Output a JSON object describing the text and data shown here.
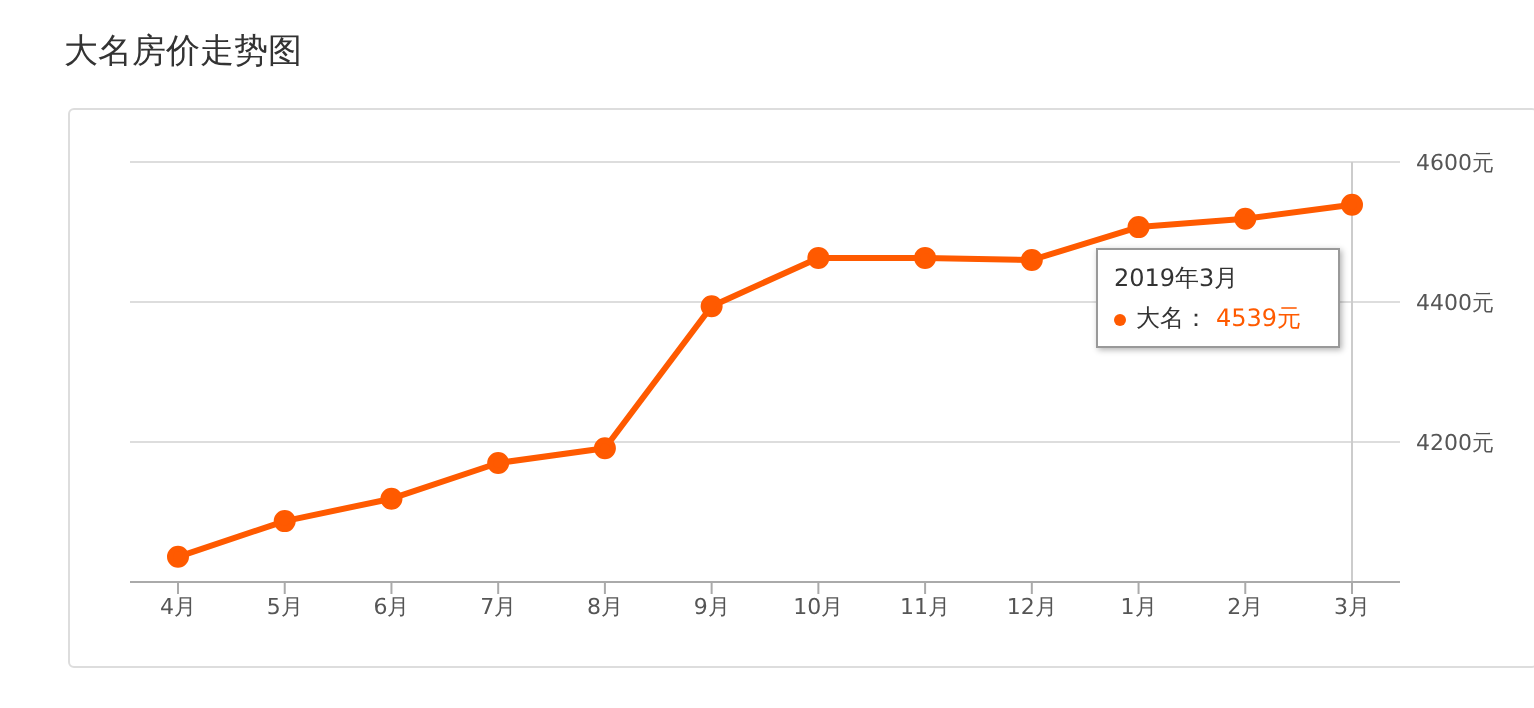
{
  "chart_data": {
    "type": "line",
    "title": "大名房价走势图",
    "categories": [
      "4月",
      "5月",
      "6月",
      "7月",
      "8月",
      "9月",
      "10月",
      "11月",
      "12月",
      "1月",
      "2月",
      "3月"
    ],
    "series": [
      {
        "name": "大名：",
        "color": "#ff5a00",
        "values": [
          4036,
          4087,
          4119,
          4170,
          4191,
          4394,
          4463,
          4463,
          4460,
          4507,
          4519,
          4539
        ]
      }
    ],
    "ylim": [
      4000,
      4600
    ],
    "yticks": [
      {
        "value": 4000,
        "label": null
      },
      {
        "value": 4200,
        "label": "4200元"
      },
      {
        "value": 4400,
        "label": "4400元"
      },
      {
        "value": 4600,
        "label": "4600元"
      }
    ],
    "annotations": [
      "2019年3月",
      "4539元"
    ],
    "ref_lines": [
      {
        "axis": "x",
        "value": "3月",
        "color": "#cccccc"
      }
    ],
    "grid": "y",
    "legend": "top right",
    "marker": "circle",
    "line_style": "solid"
  }
}
